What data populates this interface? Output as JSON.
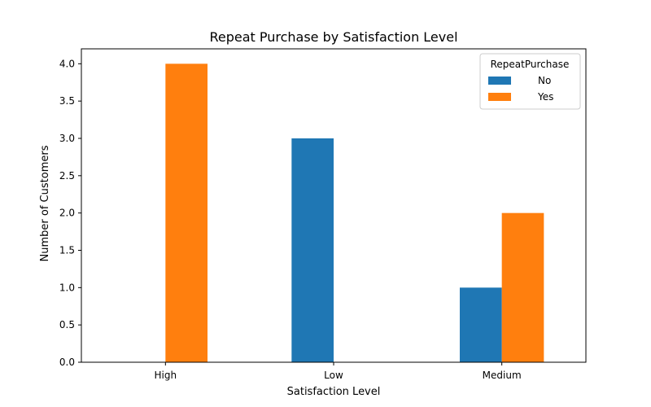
{
  "chart_data": {
    "type": "bar",
    "title": "Repeat Purchase by Satisfaction Level",
    "xlabel": "Satisfaction Level",
    "ylabel": "Number of Customers",
    "categories": [
      "High",
      "Low",
      "Medium"
    ],
    "series": [
      {
        "name": "No",
        "values": [
          0,
          3,
          1
        ],
        "color": "#1f77b4"
      },
      {
        "name": "Yes",
        "values": [
          4,
          0,
          2
        ],
        "color": "#ff7f0e"
      }
    ],
    "ylim": [
      0,
      4.2
    ],
    "yticks": [
      "0.0",
      "0.5",
      "1.0",
      "1.5",
      "2.0",
      "2.5",
      "3.0",
      "3.5",
      "4.0"
    ],
    "grid": false,
    "legend": {
      "title": "RepeatPurchase",
      "placement": "top-right"
    }
  }
}
